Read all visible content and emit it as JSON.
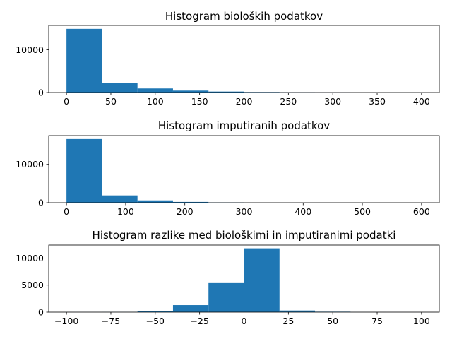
{
  "chart_data": [
    {
      "type": "bar",
      "title": "Histogram bioloških podatkov",
      "xlabel": "",
      "ylabel": "",
      "bin_edges": [
        0,
        40,
        80,
        120,
        160,
        200,
        240,
        280,
        320,
        360,
        400
      ],
      "values": [
        14900,
        2300,
        950,
        450,
        220,
        110,
        40,
        15,
        5,
        2
      ],
      "xlim": [
        -20,
        420
      ],
      "ylim": [
        0,
        15700
      ],
      "xticks": [
        0,
        50,
        100,
        150,
        200,
        250,
        300,
        350,
        400
      ],
      "yticks": [
        0,
        10000
      ],
      "color": "#1f77b4",
      "grid": false
    },
    {
      "type": "bar",
      "title": "Histogram imputiranih podatkov",
      "xlabel": "",
      "ylabel": "",
      "bin_edges": [
        0,
        60,
        120,
        180,
        240,
        300,
        360,
        420,
        480,
        540,
        600
      ],
      "values": [
        16600,
        1900,
        600,
        200,
        60,
        5,
        0,
        0,
        0,
        1
      ],
      "xlim": [
        -30,
        630
      ],
      "ylim": [
        0,
        17500
      ],
      "xticks": [
        0,
        100,
        200,
        300,
        400,
        500,
        600
      ],
      "yticks": [
        0,
        10000
      ],
      "color": "#1f77b4",
      "grid": false
    },
    {
      "type": "bar",
      "title": "Histogram razlike med biološkimi in imputiranimi podatki",
      "xlabel": "",
      "ylabel": "",
      "bin_edges": [
        -100,
        -80,
        -60,
        -40,
        -20,
        0,
        20,
        40,
        60,
        80,
        100
      ],
      "values": [
        10,
        20,
        150,
        1300,
        5500,
        11800,
        300,
        80,
        10,
        2
      ],
      "xlim": [
        -110,
        110
      ],
      "ylim": [
        0,
        12400
      ],
      "xticks": [
        -100,
        -75,
        -50,
        -25,
        0,
        25,
        50,
        75,
        100
      ],
      "yticks": [
        0,
        5000,
        10000
      ],
      "color": "#1f77b4",
      "grid": false
    }
  ]
}
